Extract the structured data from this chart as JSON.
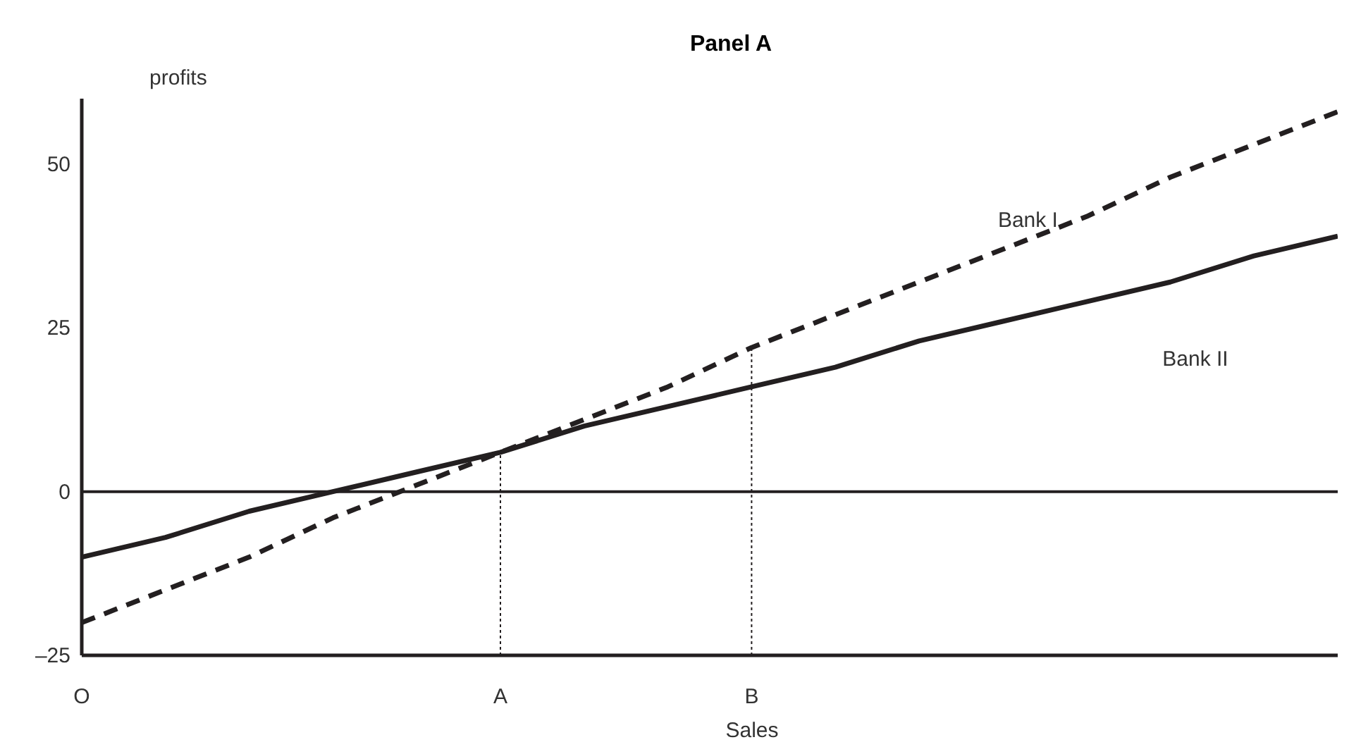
{
  "chart_data": {
    "type": "line",
    "title": "Panel A",
    "xlabel": "Sales",
    "ylabel": "profits",
    "categories": [
      "O",
      null,
      null,
      null,
      null,
      "A",
      null,
      null,
      "B",
      null,
      null,
      null,
      null,
      null,
      null,
      null
    ],
    "ylim": [
      -25,
      60
    ],
    "yticks": [
      {
        "value": -25,
        "label": "–25"
      },
      0,
      25,
      50
    ],
    "series": [
      {
        "name": "Bank I",
        "color": "#231f20",
        "values": [
          -20,
          -15,
          -10,
          -4,
          1,
          6,
          11,
          16,
          22,
          27,
          32,
          37,
          42,
          48,
          53,
          58
        ],
        "line_style": "dashed"
      },
      {
        "name": "Bank II",
        "color": "#231f20",
        "values": [
          -10,
          -7,
          -3,
          0,
          3,
          6,
          10,
          13,
          16,
          19,
          23,
          26,
          29,
          32,
          36,
          39
        ],
        "line_style": "solid"
      }
    ],
    "ref_lines": [
      {
        "axis": "y",
        "value": 0,
        "line_style": "solid"
      },
      {
        "axis": "x",
        "value": "A",
        "line_style": "dotted"
      },
      {
        "axis": "x",
        "value": "B",
        "line_style": "dotted"
      }
    ],
    "grid": false,
    "legend": false,
    "marker": "none"
  }
}
